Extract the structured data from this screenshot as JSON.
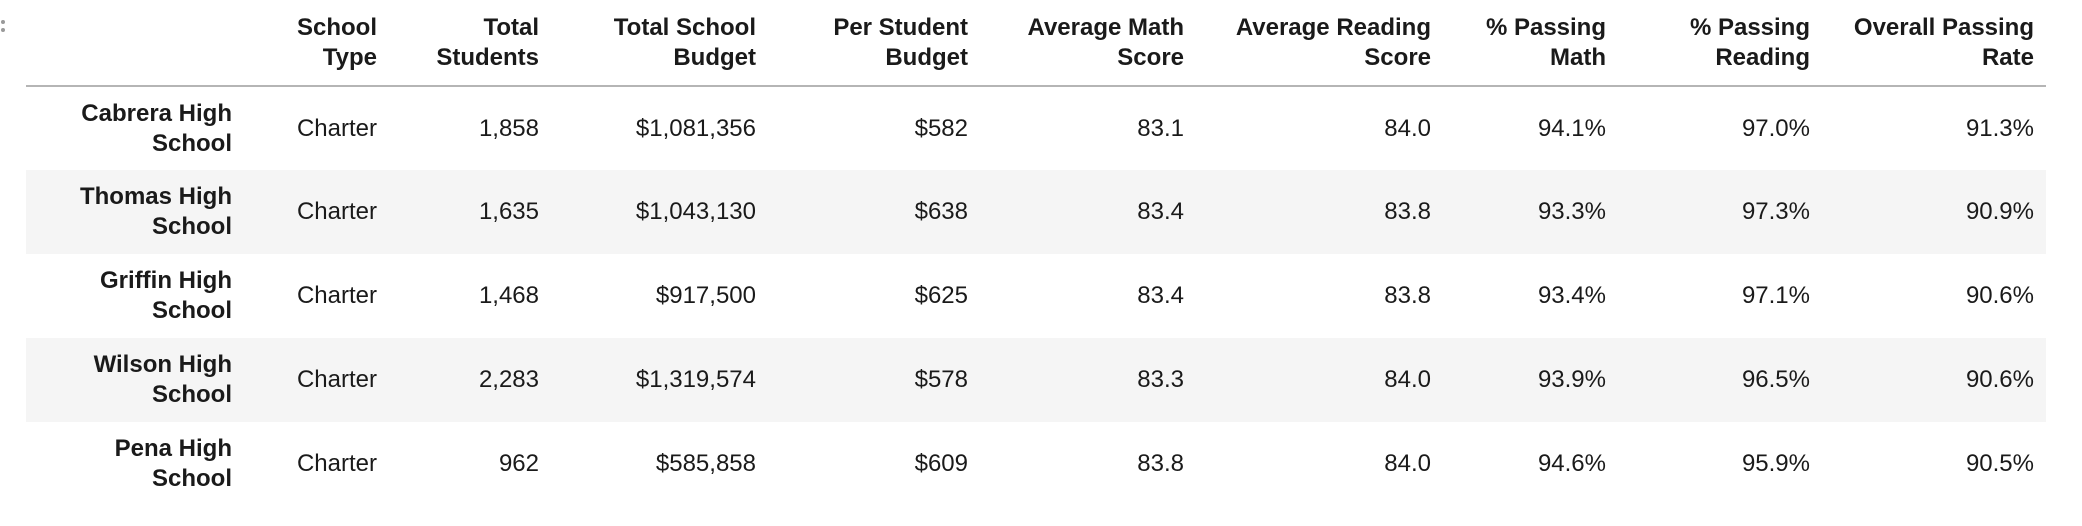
{
  "columns": [
    "",
    "School Type",
    "Total Students",
    "Total School Budget",
    "Per Student Budget",
    "Average Math Score",
    "Average Reading Score",
    "% Passing Math",
    "% Passing Reading",
    "Overall Passing Rate"
  ],
  "rows": [
    {
      "school": "Cabrera High School",
      "type": "Charter",
      "students": "1,858",
      "budget": "$1,081,356",
      "per_student": "$582",
      "math": "83.1",
      "reading": "84.0",
      "pass_math": "94.1%",
      "pass_reading": "97.0%",
      "overall": "91.3%"
    },
    {
      "school": "Thomas High School",
      "type": "Charter",
      "students": "1,635",
      "budget": "$1,043,130",
      "per_student": "$638",
      "math": "83.4",
      "reading": "83.8",
      "pass_math": "93.3%",
      "pass_reading": "97.3%",
      "overall": "90.9%"
    },
    {
      "school": "Griffin High School",
      "type": "Charter",
      "students": "1,468",
      "budget": "$917,500",
      "per_student": "$625",
      "math": "83.4",
      "reading": "83.8",
      "pass_math": "93.4%",
      "pass_reading": "97.1%",
      "overall": "90.6%"
    },
    {
      "school": "Wilson High School",
      "type": "Charter",
      "students": "2,283",
      "budget": "$1,319,574",
      "per_student": "$578",
      "math": "83.3",
      "reading": "84.0",
      "pass_math": "93.9%",
      "pass_reading": "96.5%",
      "overall": "90.6%"
    },
    {
      "school": "Pena High School",
      "type": "Charter",
      "students": "962",
      "budget": "$585,858",
      "per_student": "$609",
      "math": "83.8",
      "reading": "84.0",
      "pass_math": "94.6%",
      "pass_reading": "95.9%",
      "overall": "90.5%"
    }
  ]
}
